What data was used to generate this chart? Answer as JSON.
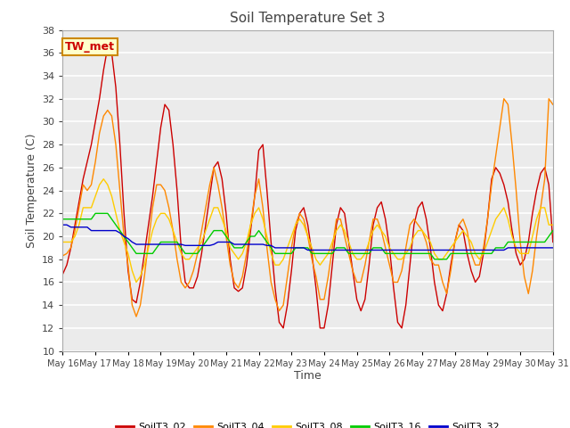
{
  "title": "Soil Temperature Set 3",
  "xlabel": "Time",
  "ylabel": "Soil Temperature (C)",
  "annotation_text": "TW_met",
  "annotation_color": "#cc0000",
  "annotation_bg": "#ffffcc",
  "annotation_border": "#cc8800",
  "ylim": [
    10,
    38
  ],
  "yticks": [
    10,
    12,
    14,
    16,
    18,
    20,
    22,
    24,
    26,
    28,
    30,
    32,
    34,
    36,
    38
  ],
  "bg_color": "#ffffff",
  "plot_bg_color": "#ebebeb",
  "grid_color": "#ffffff",
  "series": {
    "SoilT3_02": {
      "color": "#cc0000",
      "times": [
        0,
        0.125,
        0.25,
        0.375,
        0.5,
        0.625,
        0.75,
        0.875,
        1.0,
        1.125,
        1.25,
        1.375,
        1.5,
        1.625,
        1.75,
        1.875,
        2.0,
        2.125,
        2.25,
        2.375,
        2.5,
        2.625,
        2.75,
        2.875,
        3.0,
        3.125,
        3.25,
        3.375,
        3.5,
        3.625,
        3.75,
        3.875,
        4.0,
        4.125,
        4.25,
        4.375,
        4.5,
        4.625,
        4.75,
        4.875,
        5.0,
        5.125,
        5.25,
        5.375,
        5.5,
        5.625,
        5.75,
        5.875,
        6.0,
        6.125,
        6.25,
        6.375,
        6.5,
        6.625,
        6.75,
        6.875,
        7.0,
        7.125,
        7.25,
        7.375,
        7.5,
        7.625,
        7.75,
        7.875,
        8.0,
        8.125,
        8.25,
        8.375,
        8.5,
        8.625,
        8.75,
        8.875,
        9.0,
        9.125,
        9.25,
        9.375,
        9.5,
        9.625,
        9.75,
        9.875,
        10.0,
        10.125,
        10.25,
        10.375,
        10.5,
        10.625,
        10.75,
        10.875,
        11.0,
        11.125,
        11.25,
        11.375,
        11.5,
        11.625,
        11.75,
        11.875,
        12.0,
        12.125,
        12.25,
        12.375,
        12.5,
        12.625,
        12.75,
        12.875,
        13.0,
        13.125,
        13.25,
        13.375,
        13.5,
        13.625,
        13.75,
        13.875,
        14.0,
        14.125,
        14.25,
        14.375,
        14.5,
        14.625,
        14.75,
        14.875,
        15.0
      ],
      "values": [
        16.7,
        17.5,
        19.0,
        21.0,
        23.0,
        25.0,
        26.5,
        28.0,
        30.0,
        32.0,
        34.5,
        36.5,
        36.0,
        33.0,
        28.0,
        22.0,
        17.0,
        14.5,
        14.2,
        16.0,
        18.5,
        21.0,
        23.5,
        26.5,
        29.5,
        31.5,
        31.0,
        28.0,
        24.0,
        19.0,
        16.0,
        15.5,
        15.5,
        16.5,
        18.5,
        21.0,
        23.5,
        26.0,
        26.5,
        25.0,
        22.0,
        18.0,
        15.5,
        15.2,
        15.5,
        17.5,
        20.5,
        23.5,
        27.5,
        28.0,
        24.0,
        19.5,
        15.5,
        12.5,
        12.0,
        14.0,
        17.0,
        20.5,
        22.0,
        22.5,
        21.0,
        18.5,
        15.5,
        12.0,
        12.0,
        14.0,
        17.5,
        21.0,
        22.5,
        22.0,
        19.5,
        17.0,
        14.5,
        13.5,
        14.5,
        17.5,
        21.0,
        22.5,
        23.0,
        21.5,
        19.0,
        15.5,
        12.5,
        12.0,
        14.0,
        17.5,
        21.0,
        22.5,
        23.0,
        21.5,
        19.0,
        16.0,
        14.0,
        13.5,
        15.0,
        17.5,
        19.5,
        21.0,
        20.5,
        18.5,
        17.0,
        16.0,
        16.5,
        18.5,
        21.5,
        25.0,
        26.0,
        25.5,
        24.5,
        23.0,
        20.5,
        18.5,
        17.5,
        18.0,
        19.5,
        22.0,
        24.0,
        25.5,
        26.0,
        24.5,
        19.5
      ]
    },
    "SoilT3_04": {
      "color": "#ff8800",
      "times": [
        0,
        0.125,
        0.25,
        0.375,
        0.5,
        0.625,
        0.75,
        0.875,
        1.0,
        1.125,
        1.25,
        1.375,
        1.5,
        1.625,
        1.75,
        1.875,
        2.0,
        2.125,
        2.25,
        2.375,
        2.5,
        2.625,
        2.75,
        2.875,
        3.0,
        3.125,
        3.25,
        3.375,
        3.5,
        3.625,
        3.75,
        3.875,
        4.0,
        4.125,
        4.25,
        4.375,
        4.5,
        4.625,
        4.75,
        4.875,
        5.0,
        5.125,
        5.25,
        5.375,
        5.5,
        5.625,
        5.75,
        5.875,
        6.0,
        6.125,
        6.25,
        6.375,
        6.5,
        6.625,
        6.75,
        6.875,
        7.0,
        7.125,
        7.25,
        7.375,
        7.5,
        7.625,
        7.75,
        7.875,
        8.0,
        8.125,
        8.25,
        8.375,
        8.5,
        8.625,
        8.75,
        8.875,
        9.0,
        9.125,
        9.25,
        9.375,
        9.5,
        9.625,
        9.75,
        9.875,
        10.0,
        10.125,
        10.25,
        10.375,
        10.5,
        10.625,
        10.75,
        10.875,
        11.0,
        11.125,
        11.25,
        11.375,
        11.5,
        11.625,
        11.75,
        11.875,
        12.0,
        12.125,
        12.25,
        12.375,
        12.5,
        12.625,
        12.75,
        12.875,
        13.0,
        13.125,
        13.25,
        13.375,
        13.5,
        13.625,
        13.75,
        13.875,
        14.0,
        14.125,
        14.25,
        14.375,
        14.5,
        14.625,
        14.75,
        14.875,
        15.0
      ],
      "values": [
        18.3,
        18.5,
        19.0,
        20.5,
        22.5,
        24.5,
        24.0,
        24.5,
        26.5,
        29.0,
        30.5,
        31.0,
        30.5,
        28.0,
        24.0,
        20.0,
        17.5,
        14.0,
        13.0,
        14.0,
        16.5,
        19.5,
        22.5,
        24.5,
        24.5,
        24.0,
        22.5,
        20.5,
        18.0,
        16.0,
        15.5,
        16.0,
        17.0,
        18.5,
        20.5,
        22.5,
        24.5,
        26.0,
        24.5,
        22.5,
        20.0,
        17.5,
        16.0,
        15.5,
        16.5,
        18.5,
        21.0,
        23.5,
        25.0,
        22.5,
        19.0,
        16.0,
        14.5,
        13.5,
        14.0,
        16.5,
        19.0,
        21.0,
        22.0,
        21.5,
        20.0,
        18.0,
        16.5,
        14.5,
        14.5,
        16.5,
        19.0,
        21.5,
        21.5,
        20.0,
        18.5,
        17.0,
        16.0,
        16.0,
        17.5,
        19.5,
        21.5,
        21.5,
        20.5,
        19.0,
        17.5,
        16.0,
        16.0,
        17.0,
        19.0,
        21.0,
        21.5,
        21.0,
        20.5,
        19.5,
        18.0,
        17.5,
        17.5,
        16.0,
        15.0,
        17.0,
        19.5,
        21.0,
        21.5,
        20.5,
        18.5,
        17.5,
        17.5,
        19.0,
        21.5,
        24.5,
        27.0,
        29.5,
        32.0,
        31.5,
        28.0,
        24.0,
        19.5,
        16.5,
        15.0,
        17.0,
        20.0,
        22.5,
        25.0,
        32.0,
        31.5
      ]
    },
    "SoilT3_08": {
      "color": "#ffcc00",
      "times": [
        0,
        0.125,
        0.25,
        0.375,
        0.5,
        0.625,
        0.75,
        0.875,
        1.0,
        1.125,
        1.25,
        1.375,
        1.5,
        1.625,
        1.75,
        1.875,
        2.0,
        2.125,
        2.25,
        2.375,
        2.5,
        2.625,
        2.75,
        2.875,
        3.0,
        3.125,
        3.25,
        3.375,
        3.5,
        3.625,
        3.75,
        3.875,
        4.0,
        4.125,
        4.25,
        4.375,
        4.5,
        4.625,
        4.75,
        4.875,
        5.0,
        5.125,
        5.25,
        5.375,
        5.5,
        5.625,
        5.75,
        5.875,
        6.0,
        6.125,
        6.25,
        6.375,
        6.5,
        6.625,
        6.75,
        6.875,
        7.0,
        7.125,
        7.25,
        7.375,
        7.5,
        7.625,
        7.75,
        7.875,
        8.0,
        8.125,
        8.25,
        8.375,
        8.5,
        8.625,
        8.75,
        8.875,
        9.0,
        9.125,
        9.25,
        9.375,
        9.5,
        9.625,
        9.75,
        9.875,
        10.0,
        10.125,
        10.25,
        10.375,
        10.5,
        10.625,
        10.75,
        10.875,
        11.0,
        11.125,
        11.25,
        11.375,
        11.5,
        11.625,
        11.75,
        11.875,
        12.0,
        12.125,
        12.25,
        12.375,
        12.5,
        12.625,
        12.75,
        12.875,
        13.0,
        13.125,
        13.25,
        13.375,
        13.5,
        13.625,
        13.75,
        13.875,
        14.0,
        14.125,
        14.25,
        14.375,
        14.5,
        14.625,
        14.75,
        14.875,
        15.0
      ],
      "values": [
        19.5,
        19.5,
        19.5,
        20.0,
        21.0,
        22.5,
        22.5,
        22.5,
        23.5,
        24.5,
        25.0,
        24.5,
        23.5,
        22.0,
        20.5,
        19.5,
        18.5,
        17.0,
        16.0,
        16.5,
        17.5,
        19.0,
        20.5,
        21.5,
        22.0,
        22.0,
        21.5,
        20.5,
        19.5,
        18.5,
        18.0,
        18.0,
        18.5,
        19.0,
        19.5,
        20.5,
        21.5,
        22.5,
        22.5,
        21.5,
        20.5,
        19.0,
        18.5,
        18.0,
        18.5,
        19.5,
        21.0,
        22.0,
        22.5,
        21.5,
        20.0,
        18.5,
        17.5,
        17.5,
        18.0,
        19.0,
        20.0,
        21.0,
        21.5,
        21.0,
        20.0,
        19.0,
        18.0,
        17.5,
        18.0,
        18.5,
        19.5,
        20.5,
        21.0,
        20.5,
        19.5,
        18.5,
        18.0,
        18.0,
        18.5,
        19.5,
        20.5,
        21.0,
        20.5,
        20.0,
        19.0,
        18.5,
        18.0,
        18.0,
        18.5,
        19.0,
        20.0,
        20.5,
        20.5,
        20.0,
        19.5,
        18.5,
        18.0,
        18.0,
        18.5,
        19.0,
        19.5,
        20.0,
        20.5,
        20.0,
        19.5,
        18.5,
        18.0,
        18.5,
        19.5,
        20.5,
        21.5,
        22.0,
        22.5,
        21.5,
        20.0,
        19.0,
        18.5,
        18.5,
        18.5,
        20.0,
        21.5,
        22.5,
        22.5,
        21.0,
        21.0
      ]
    },
    "SoilT3_16": {
      "color": "#00cc00",
      "times": [
        0,
        0.125,
        0.25,
        0.375,
        0.5,
        0.625,
        0.75,
        0.875,
        1.0,
        1.125,
        1.25,
        1.375,
        1.5,
        1.625,
        1.75,
        1.875,
        2.0,
        2.125,
        2.25,
        2.375,
        2.5,
        2.625,
        2.75,
        2.875,
        3.0,
        3.125,
        3.25,
        3.375,
        3.5,
        3.625,
        3.75,
        3.875,
        4.0,
        4.125,
        4.25,
        4.375,
        4.5,
        4.625,
        4.75,
        4.875,
        5.0,
        5.125,
        5.25,
        5.375,
        5.5,
        5.625,
        5.75,
        5.875,
        6.0,
        6.125,
        6.25,
        6.375,
        6.5,
        6.625,
        6.75,
        6.875,
        7.0,
        7.125,
        7.25,
        7.375,
        7.5,
        7.625,
        7.75,
        7.875,
        8.0,
        8.125,
        8.25,
        8.375,
        8.5,
        8.625,
        8.75,
        8.875,
        9.0,
        9.125,
        9.25,
        9.375,
        9.5,
        9.625,
        9.75,
        9.875,
        10.0,
        10.125,
        10.25,
        10.375,
        10.5,
        10.625,
        10.75,
        10.875,
        11.0,
        11.125,
        11.25,
        11.375,
        11.5,
        11.625,
        11.75,
        11.875,
        12.0,
        12.125,
        12.25,
        12.375,
        12.5,
        12.625,
        12.75,
        12.875,
        13.0,
        13.125,
        13.25,
        13.375,
        13.5,
        13.625,
        13.75,
        13.875,
        14.0,
        14.125,
        14.25,
        14.375,
        14.5,
        14.625,
        14.75,
        14.875,
        15.0
      ],
      "values": [
        21.5,
        21.5,
        21.5,
        21.5,
        21.5,
        21.5,
        21.5,
        21.5,
        22.0,
        22.0,
        22.0,
        22.0,
        21.5,
        21.0,
        20.5,
        20.0,
        19.5,
        19.0,
        18.5,
        18.5,
        18.5,
        18.5,
        18.5,
        19.0,
        19.5,
        19.5,
        19.5,
        19.5,
        19.5,
        19.0,
        18.5,
        18.5,
        18.5,
        18.5,
        19.0,
        19.5,
        20.0,
        20.5,
        20.5,
        20.5,
        20.0,
        19.5,
        19.0,
        19.0,
        19.0,
        19.5,
        20.0,
        20.0,
        20.5,
        20.0,
        19.5,
        19.0,
        18.5,
        18.5,
        18.5,
        18.5,
        18.5,
        19.0,
        19.0,
        19.0,
        19.0,
        18.5,
        18.5,
        18.5,
        18.5,
        18.5,
        18.5,
        19.0,
        19.0,
        19.0,
        18.5,
        18.5,
        18.5,
        18.5,
        18.5,
        18.5,
        19.0,
        19.0,
        19.0,
        18.5,
        18.5,
        18.5,
        18.5,
        18.5,
        18.5,
        18.5,
        18.5,
        18.5,
        18.5,
        18.5,
        18.5,
        18.0,
        18.0,
        18.0,
        18.0,
        18.5,
        18.5,
        18.5,
        18.5,
        18.5,
        18.5,
        18.5,
        18.5,
        18.5,
        18.5,
        18.5,
        19.0,
        19.0,
        19.0,
        19.5,
        19.5,
        19.5,
        19.5,
        19.5,
        19.5,
        19.5,
        19.5,
        19.5,
        19.5,
        20.0,
        20.5
      ]
    },
    "SoilT3_32": {
      "color": "#0000cc",
      "times": [
        0,
        0.125,
        0.25,
        0.375,
        0.5,
        0.625,
        0.75,
        0.875,
        1.0,
        1.125,
        1.25,
        1.375,
        1.5,
        1.625,
        1.75,
        1.875,
        2.0,
        2.125,
        2.25,
        2.375,
        2.5,
        2.625,
        2.75,
        2.875,
        3.0,
        3.125,
        3.25,
        3.375,
        3.5,
        3.625,
        3.75,
        3.875,
        4.0,
        4.125,
        4.25,
        4.375,
        4.5,
        4.625,
        4.75,
        4.875,
        5.0,
        5.125,
        5.25,
        5.375,
        5.5,
        5.625,
        5.75,
        5.875,
        6.0,
        6.125,
        6.25,
        6.375,
        6.5,
        6.625,
        6.75,
        6.875,
        7.0,
        7.125,
        7.25,
        7.375,
        7.5,
        7.625,
        7.75,
        7.875,
        8.0,
        8.125,
        8.25,
        8.375,
        8.5,
        8.625,
        8.75,
        8.875,
        9.0,
        9.125,
        9.25,
        9.375,
        9.5,
        9.625,
        9.75,
        9.875,
        10.0,
        10.125,
        10.25,
        10.375,
        10.5,
        10.625,
        10.75,
        10.875,
        11.0,
        11.125,
        11.25,
        11.375,
        11.5,
        11.625,
        11.75,
        11.875,
        12.0,
        12.125,
        12.25,
        12.375,
        12.5,
        12.625,
        12.75,
        12.875,
        13.0,
        13.125,
        13.25,
        13.375,
        13.5,
        13.625,
        13.75,
        13.875,
        14.0,
        14.125,
        14.25,
        14.375,
        14.5,
        14.625,
        14.75,
        14.875,
        15.0
      ],
      "values": [
        21.0,
        21.0,
        20.8,
        20.8,
        20.8,
        20.8,
        20.8,
        20.5,
        20.5,
        20.5,
        20.5,
        20.5,
        20.5,
        20.5,
        20.3,
        20.0,
        19.8,
        19.5,
        19.3,
        19.3,
        19.3,
        19.3,
        19.3,
        19.3,
        19.3,
        19.3,
        19.3,
        19.3,
        19.3,
        19.3,
        19.2,
        19.2,
        19.2,
        19.2,
        19.2,
        19.2,
        19.2,
        19.3,
        19.5,
        19.5,
        19.5,
        19.5,
        19.3,
        19.3,
        19.3,
        19.3,
        19.3,
        19.3,
        19.3,
        19.3,
        19.2,
        19.2,
        19.0,
        19.0,
        19.0,
        19.0,
        19.0,
        19.0,
        19.0,
        19.0,
        18.8,
        18.8,
        18.8,
        18.8,
        18.8,
        18.8,
        18.8,
        18.8,
        18.8,
        18.8,
        18.8,
        18.8,
        18.8,
        18.8,
        18.8,
        18.8,
        18.8,
        18.8,
        18.8,
        18.8,
        18.8,
        18.8,
        18.8,
        18.8,
        18.8,
        18.8,
        18.8,
        18.8,
        18.8,
        18.8,
        18.8,
        18.8,
        18.8,
        18.8,
        18.8,
        18.8,
        18.8,
        18.8,
        18.8,
        18.8,
        18.8,
        18.8,
        18.8,
        18.8,
        18.8,
        18.8,
        18.8,
        18.8,
        18.8,
        19.0,
        19.0,
        19.0,
        19.0,
        19.0,
        19.0,
        19.0,
        19.0,
        19.0,
        19.0,
        19.0,
        19.0
      ]
    }
  },
  "xtick_positions": [
    0,
    1,
    2,
    3,
    4,
    5,
    6,
    7,
    8,
    9,
    10,
    11,
    12,
    13,
    14,
    15
  ],
  "xtick_labels": [
    "May 16",
    "May 17",
    "May 18",
    "May 19",
    "May 20",
    "May 21",
    "May 22",
    "May 23",
    "May 24",
    "May 25",
    "May 26",
    "May 27",
    "May 28",
    "May 29",
    "May 30",
    "May 31"
  ],
  "legend_entries": [
    "SoilT3_02",
    "SoilT3_04",
    "SoilT3_08",
    "SoilT3_16",
    "SoilT3_32"
  ],
  "legend_colors": [
    "#cc0000",
    "#ff8800",
    "#ffcc00",
    "#00cc00",
    "#0000cc"
  ]
}
